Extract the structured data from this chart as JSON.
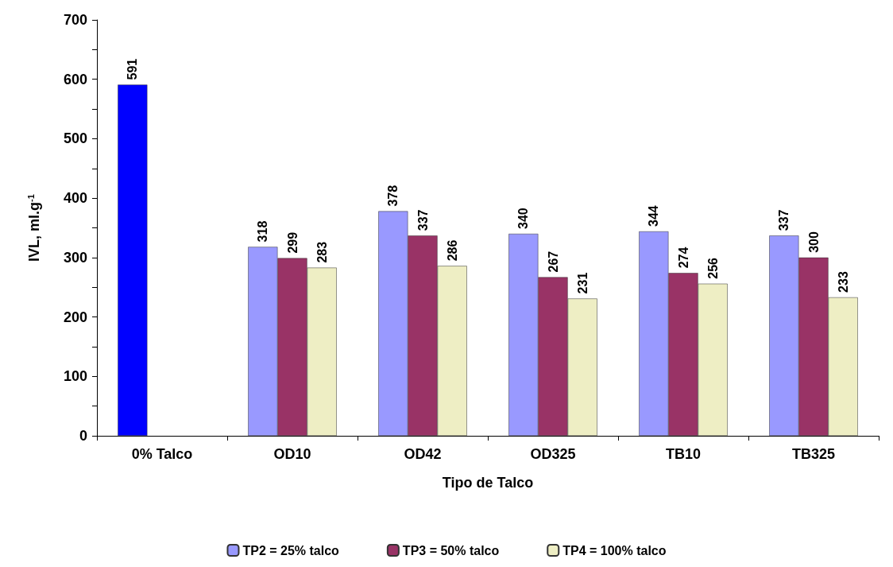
{
  "chart_data": {
    "type": "bar",
    "xlabel": "Tipo de Talco",
    "ylabel": "IVL, ml.g$^{-1}$",
    "categories": [
      "0% Talco",
      "OD10",
      "OD42",
      "OD325",
      "TB10",
      "TB325"
    ],
    "series": [
      {
        "name": "TP2 = 25% talco",
        "color": "#9999ff",
        "colors": [
          "#0000ff",
          "#9999ff",
          "#9999ff",
          "#9999ff",
          "#9999ff",
          "#9999ff"
        ],
        "values": [
          591,
          318,
          378,
          340,
          344,
          337
        ]
      },
      {
        "name": "TP3 = 50% talco",
        "color": "#993366",
        "values": [
          null,
          299,
          337,
          267,
          274,
          300
        ]
      },
      {
        "name": "TP4 = 100% talco",
        "color": "#eeeec4",
        "values": [
          null,
          283,
          286,
          231,
          256,
          233
        ]
      }
    ],
    "ylim": [
      0,
      700
    ],
    "yticks": [
      0,
      {
        "value": 50,
        "label": null
      },
      100,
      {
        "value": 150,
        "label": null
      },
      200,
      {
        "value": 250,
        "label": null
      },
      300,
      {
        "value": 350,
        "label": null
      },
      400,
      {
        "value": 450,
        "label": null
      },
      500,
      {
        "value": 550,
        "label": null
      },
      600,
      {
        "value": 650,
        "label": null
      },
      700
    ],
    "grid": false,
    "legend": "bottom",
    "data_labels": true
  }
}
